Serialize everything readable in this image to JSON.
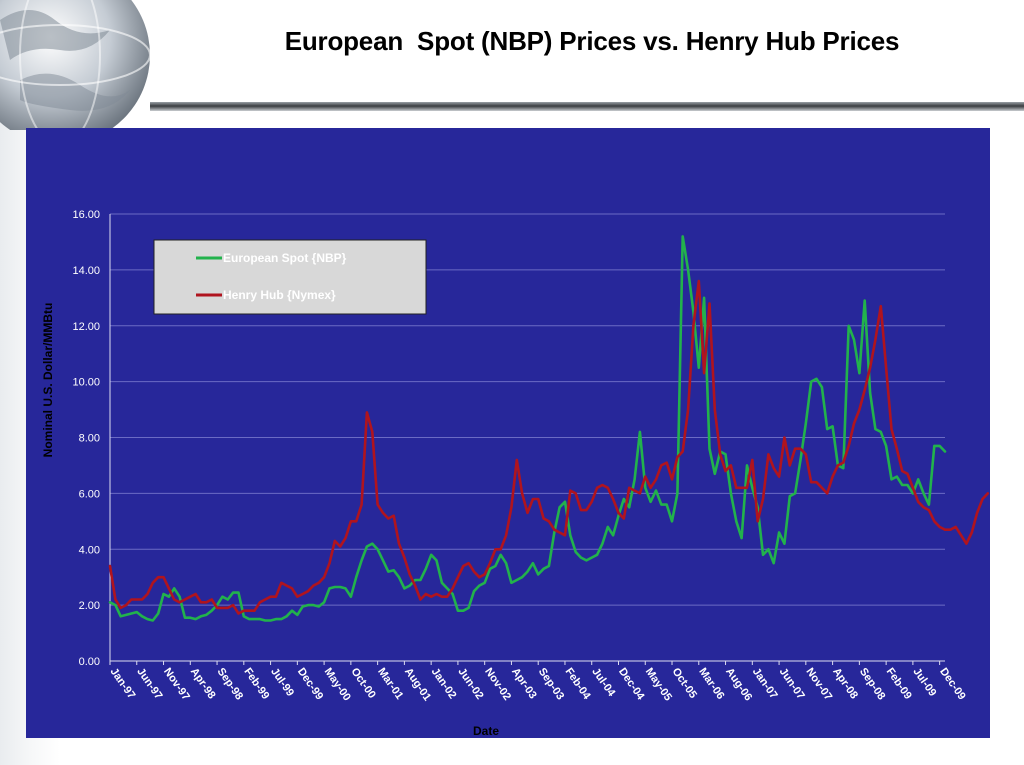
{
  "slide": {
    "title": "European  Spot (NBP) Prices vs. Henry Hub Prices"
  },
  "colors": {
    "panel": "#27279a",
    "nbp": "#22b24c",
    "henry_hub": "#b0141e",
    "grid": "#6b6bc4",
    "legend_bg": "#d8d8d8"
  },
  "chart_data": {
    "type": "line",
    "title": "",
    "xlabel": "Date",
    "ylabel": "Nominal U.S. Dollar/MMBtu",
    "ylim": [
      0,
      16
    ],
    "y_ticks": [
      "0.00",
      "2.00",
      "4.00",
      "6.00",
      "8.00",
      "10.00",
      "12.00",
      "14.00",
      "16.00"
    ],
    "x_tick_labels": [
      "Jan-97",
      "Jun-97",
      "Nov-97",
      "Apr-98",
      "Sep-98",
      "Feb-99",
      "Jul-99",
      "Dec-99",
      "May-00",
      "Oct-00",
      "Mar-01",
      "Aug-01",
      "Jan-02",
      "Jun-02",
      "Nov-02",
      "Apr-03",
      "Sep-03",
      "Feb-04",
      "Jul-04",
      "Dec-04",
      "May-05",
      "Oct-05",
      "Mar-06",
      "Aug-06",
      "Jan-07",
      "Jun-07",
      "Nov-07",
      "Apr-08",
      "Sep-08",
      "Feb-09",
      "Jul-09",
      "Dec-09"
    ],
    "x_start": "Jan-97",
    "x_end": "Dec-09",
    "grid": true,
    "legend_position": "top-left",
    "series": [
      {
        "name": "European Spot {NBP}",
        "values": [
          2.1,
          2.0,
          1.6,
          1.65,
          1.7,
          1.75,
          1.6,
          1.5,
          1.45,
          1.7,
          2.4,
          2.3,
          2.6,
          2.3,
          1.55,
          1.55,
          1.5,
          1.6,
          1.65,
          1.8,
          2.0,
          2.3,
          2.2,
          2.45,
          2.45,
          1.6,
          1.5,
          1.5,
          1.5,
          1.45,
          1.45,
          1.5,
          1.5,
          1.6,
          1.8,
          1.65,
          1.95,
          2.0,
          2.0,
          1.95,
          2.1,
          2.6,
          2.65,
          2.65,
          2.6,
          2.3,
          3.0,
          3.6,
          4.1,
          4.2,
          4.0,
          3.6,
          3.2,
          3.25,
          3.0,
          2.6,
          2.7,
          2.9,
          2.9,
          3.3,
          3.8,
          3.6,
          2.8,
          2.6,
          2.4,
          1.8,
          1.8,
          1.9,
          2.5,
          2.7,
          2.8,
          3.3,
          3.4,
          3.8,
          3.5,
          2.8,
          2.9,
          3.0,
          3.2,
          3.5,
          3.1,
          3.3,
          3.4,
          4.6,
          5.5,
          5.7,
          4.5,
          3.9,
          3.7,
          3.6,
          3.7,
          3.8,
          4.2,
          4.8,
          4.5,
          5.2,
          5.8,
          5.5,
          6.5,
          8.2,
          6.2,
          5.7,
          6.1,
          5.6,
          5.6,
          5.0,
          6.0,
          15.2,
          14.0,
          12.5,
          10.5,
          13.0,
          7.6,
          6.7,
          7.5,
          7.4,
          6.0,
          5.0,
          4.4,
          7.0,
          6.2,
          5.5,
          3.8,
          4.0,
          3.5,
          4.6,
          4.2,
          5.9,
          6.0,
          7.2,
          8.5,
          10.0,
          10.1,
          9.8,
          8.3,
          8.4,
          7.0,
          6.9,
          12.0,
          11.5,
          10.3,
          12.9,
          9.6,
          8.3,
          8.2,
          7.7,
          6.5,
          6.6,
          6.3,
          6.3,
          6.0,
          6.5,
          6.0,
          5.6,
          7.7,
          7.7,
          7.5
        ]
      },
      {
        "name": "Henry Hub {Nymex}",
        "values": [
          3.4,
          2.2,
          1.9,
          2.0,
          2.2,
          2.2,
          2.2,
          2.4,
          2.8,
          3.0,
          3.0,
          2.6,
          2.2,
          2.1,
          2.2,
          2.3,
          2.4,
          2.1,
          2.1,
          2.2,
          1.9,
          1.9,
          1.9,
          2.0,
          1.7,
          1.8,
          1.8,
          1.8,
          2.1,
          2.2,
          2.3,
          2.3,
          2.8,
          2.7,
          2.6,
          2.3,
          2.4,
          2.5,
          2.7,
          2.8,
          3.0,
          3.5,
          4.3,
          4.1,
          4.4,
          5.0,
          5.0,
          5.6,
          8.9,
          8.2,
          5.6,
          5.3,
          5.1,
          5.2,
          4.2,
          3.7,
          3.1,
          2.7,
          2.2,
          2.4,
          2.3,
          2.4,
          2.3,
          2.3,
          2.6,
          3.0,
          3.4,
          3.5,
          3.2,
          3.0,
          3.1,
          3.5,
          4.0,
          4.0,
          4.5,
          5.5,
          7.2,
          6.0,
          5.3,
          5.8,
          5.8,
          5.1,
          5.0,
          4.7,
          4.6,
          4.5,
          6.1,
          6.0,
          5.4,
          5.4,
          5.7,
          6.2,
          6.3,
          6.2,
          5.8,
          5.3,
          5.1,
          6.2,
          6.1,
          6.0,
          6.6,
          6.2,
          6.5,
          7.0,
          7.1,
          6.5,
          7.3,
          7.5,
          9.0,
          12.0,
          13.6,
          10.3,
          12.8,
          9.0,
          7.4,
          6.8,
          7.0,
          6.2,
          6.2,
          6.2,
          7.2,
          5.0,
          5.8,
          7.4,
          6.9,
          6.6,
          8.0,
          7.0,
          7.6,
          7.6,
          7.4,
          6.4,
          6.4,
          6.2,
          6.0,
          6.6,
          7.0,
          7.1,
          7.7,
          8.5,
          9.0,
          9.7,
          10.5,
          11.5,
          12.7,
          10.5,
          8.3,
          7.6,
          6.8,
          6.7,
          6.2,
          5.7,
          5.5,
          5.4,
          5.0,
          4.8,
          4.7,
          4.7,
          4.8,
          4.5,
          4.2,
          4.6,
          5.3,
          5.8,
          6.0
        ]
      }
    ]
  }
}
